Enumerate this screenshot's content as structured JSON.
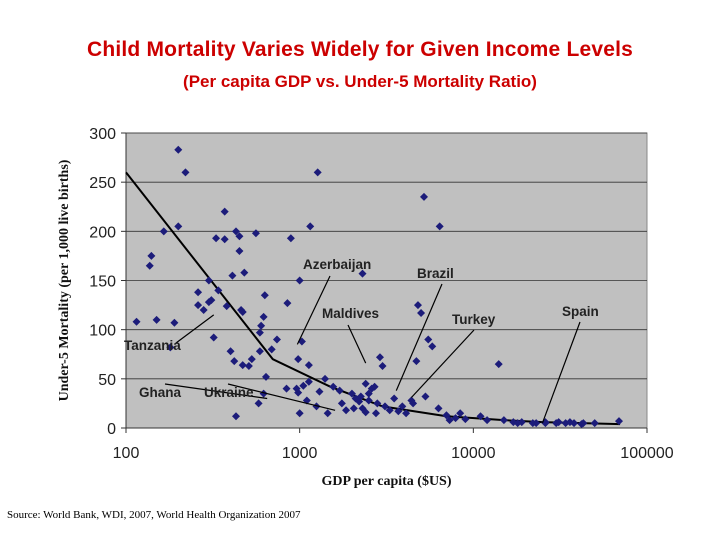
{
  "slide": {
    "title": "Child Mortality Varies Widely for Given Income Levels",
    "subtitle": "(Per capita GDP vs. Under-5 Mortality Ratio)",
    "source": "Source: World Bank, WDI, 2007, World Health Organization 2007"
  },
  "colors": {
    "plot_bg": "#c0c0c0",
    "point": "#1c1c7a",
    "trend": "#000000",
    "title": "#cc0000"
  },
  "chart_data": {
    "type": "scatter",
    "xscale": "log",
    "xlim": [
      100,
      100000
    ],
    "ylim": [
      0,
      300
    ],
    "xticks": [
      100,
      1000,
      10000,
      100000
    ],
    "xtick_labels": [
      "100",
      "1000",
      "10000",
      "100000"
    ],
    "yticks": [
      0,
      50,
      100,
      150,
      200,
      250,
      300
    ],
    "ytick_labels": [
      "0",
      "50",
      "100",
      "150",
      "200",
      "250",
      "300"
    ],
    "xlabel": "GDP per capita ($US)",
    "ylabel": "Under-5 Mortality (per 1,000 live births)",
    "grid": "horizontal",
    "trend_line": {
      "x": [
        100,
        700,
        1500,
        3000,
        7000,
        15000,
        25000,
        70000
      ],
      "y": [
        260,
        70,
        42,
        22,
        12,
        8,
        6,
        4
      ]
    },
    "points": [
      [
        200,
        283
      ],
      [
        220,
        260
      ],
      [
        1270,
        260
      ],
      [
        5200,
        235
      ],
      [
        370,
        220
      ],
      [
        1150,
        205
      ],
      [
        6400,
        205
      ],
      [
        200,
        205
      ],
      [
        165,
        200
      ],
      [
        330,
        193
      ],
      [
        370,
        192
      ],
      [
        430,
        200
      ],
      [
        450,
        195
      ],
      [
        560,
        198
      ],
      [
        890,
        193
      ],
      [
        450,
        180
      ],
      [
        140,
        175
      ],
      [
        137,
        165
      ],
      [
        480,
        158
      ],
      [
        410,
        155
      ],
      [
        2300,
        157
      ],
      [
        260,
        138
      ],
      [
        340,
        140
      ],
      [
        280,
        120
      ],
      [
        300,
        128
      ],
      [
        260,
        125
      ],
      [
        310,
        130
      ],
      [
        300,
        150
      ],
      [
        630,
        135
      ],
      [
        1000,
        150
      ],
      [
        380,
        124
      ],
      [
        460,
        120
      ],
      [
        470,
        118
      ],
      [
        620,
        113
      ],
      [
        600,
        104
      ],
      [
        590,
        97
      ],
      [
        850,
        127
      ],
      [
        740,
        90
      ],
      [
        150,
        110
      ],
      [
        115,
        108
      ],
      [
        180,
        82
      ],
      [
        320,
        92
      ],
      [
        400,
        78
      ],
      [
        420,
        68
      ],
      [
        470,
        64
      ],
      [
        530,
        70
      ],
      [
        510,
        63
      ],
      [
        590,
        78
      ],
      [
        690,
        80
      ],
      [
        980,
        70
      ],
      [
        1030,
        88
      ],
      [
        1130,
        64
      ],
      [
        4800,
        125
      ],
      [
        5000,
        117
      ],
      [
        5500,
        90
      ],
      [
        5800,
        83
      ],
      [
        2900,
        72
      ],
      [
        3000,
        63
      ],
      [
        4700,
        68
      ],
      [
        640,
        52
      ],
      [
        840,
        40
      ],
      [
        980,
        36
      ],
      [
        1050,
        43
      ],
      [
        1130,
        47
      ],
      [
        1300,
        37
      ],
      [
        1400,
        50
      ],
      [
        1560,
        42
      ],
      [
        1700,
        38
      ],
      [
        2000,
        35
      ],
      [
        2100,
        30
      ],
      [
        2200,
        27
      ],
      [
        2300,
        20
      ],
      [
        2400,
        45
      ],
      [
        2500,
        35
      ],
      [
        2600,
        40
      ],
      [
        2700,
        42
      ],
      [
        2800,
        25
      ],
      [
        3100,
        22
      ],
      [
        3300,
        18
      ],
      [
        3700,
        17
      ],
      [
        4100,
        15
      ],
      [
        4500,
        25
      ],
      [
        5300,
        32
      ],
      [
        6300,
        20
      ],
      [
        7000,
        13
      ],
      [
        7900,
        10
      ],
      [
        9000,
        9
      ],
      [
        14000,
        65
      ],
      [
        15000,
        8
      ],
      [
        17000,
        6
      ],
      [
        19000,
        6
      ],
      [
        23000,
        5
      ],
      [
        26000,
        5
      ],
      [
        30000,
        5
      ],
      [
        34000,
        5
      ],
      [
        38000,
        5
      ],
      [
        42000,
        4
      ],
      [
        50000,
        5
      ],
      [
        69000,
        7
      ],
      [
        1000,
        15
      ],
      [
        1250,
        22
      ],
      [
        1450,
        15
      ],
      [
        1850,
        18
      ],
      [
        2050,
        20
      ],
      [
        2500,
        28
      ],
      [
        3500,
        30
      ],
      [
        2250,
        32
      ],
      [
        2400,
        16
      ],
      [
        3900,
        22
      ],
      [
        7300,
        8
      ],
      [
        12000,
        8
      ],
      [
        18000,
        5
      ],
      [
        22000,
        5
      ],
      [
        26000,
        6
      ],
      [
        31000,
        6
      ],
      [
        36000,
        6
      ],
      [
        43000,
        5
      ],
      [
        11000,
        12
      ],
      [
        8400,
        15
      ],
      [
        4400,
        28
      ],
      [
        1750,
        25
      ],
      [
        2750,
        15
      ],
      [
        960,
        40
      ],
      [
        1100,
        28
      ],
      [
        190,
        107
      ],
      [
        620,
        35
      ],
      [
        430,
        12
      ],
      [
        580,
        25
      ]
    ],
    "annotations": [
      {
        "label": "Tanzania",
        "x": 320,
        "y": 115
      },
      {
        "label": "Ghana",
        "x": 650,
        "y": 30
      },
      {
        "label": "Ukraine",
        "x": 1600,
        "y": 18
      },
      {
        "label": "Azerbaijan",
        "x": 970,
        "y": 85
      },
      {
        "label": "Maldives",
        "x": 2400,
        "y": 66
      },
      {
        "label": "Brazil",
        "x": 3600,
        "y": 38
      },
      {
        "label": "Turkey",
        "x": 4400,
        "y": 31
      },
      {
        "label": "Spain",
        "x": 25000,
        "y": 5
      }
    ]
  }
}
